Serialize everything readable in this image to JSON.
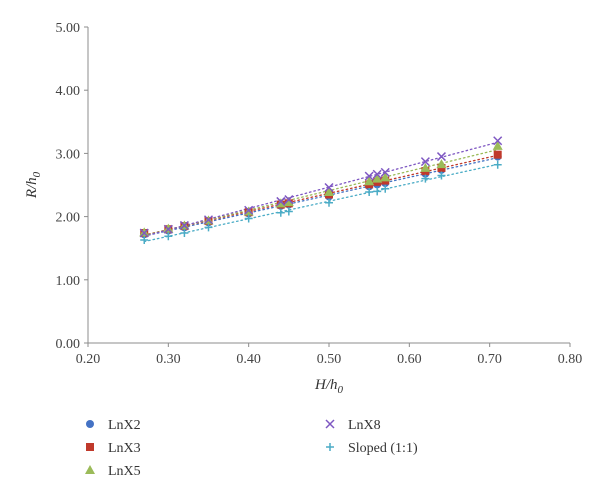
{
  "chart_data": {
    "type": "scatter",
    "title": "",
    "xlabel": {
      "main": "H/h",
      "sub": "0"
    },
    "ylabel": {
      "main": "R/h",
      "sub": "0"
    },
    "xlim": [
      0.2,
      0.8
    ],
    "ylim": [
      0.0,
      5.0
    ],
    "x_ticks": [
      "0.20",
      "0.30",
      "0.40",
      "0.50",
      "0.60",
      "0.70",
      "0.80"
    ],
    "y_ticks": [
      "0.00",
      "1.00",
      "2.00",
      "3.00",
      "4.00",
      "5.00"
    ],
    "grid": false,
    "legend_position": "bottom",
    "trendlines": "dotted linear fit per series",
    "series": [
      {
        "name": "LnX2",
        "marker": "circle",
        "color": "#4472C4",
        "x": [
          0.27,
          0.3,
          0.32,
          0.35,
          0.4,
          0.44,
          0.45,
          0.5,
          0.55,
          0.56,
          0.57,
          0.62,
          0.64,
          0.71
        ],
        "y": [
          1.72,
          1.78,
          1.83,
          1.91,
          2.05,
          2.17,
          2.19,
          2.32,
          2.48,
          2.51,
          2.53,
          2.68,
          2.74,
          2.95
        ]
      },
      {
        "name": "LnX3",
        "marker": "square",
        "color": "#C0392B",
        "x": [
          0.27,
          0.3,
          0.32,
          0.35,
          0.4,
          0.44,
          0.45,
          0.5,
          0.55,
          0.56,
          0.57,
          0.62,
          0.64,
          0.71
        ],
        "y": [
          1.74,
          1.8,
          1.85,
          1.93,
          2.07,
          2.19,
          2.21,
          2.35,
          2.51,
          2.55,
          2.57,
          2.72,
          2.77,
          2.98
        ]
      },
      {
        "name": "LnX5",
        "marker": "triangle",
        "color": "#9BBB59",
        "x": [
          0.27,
          0.3,
          0.32,
          0.35,
          0.4,
          0.44,
          0.45,
          0.5,
          0.55,
          0.56,
          0.57,
          0.62,
          0.64,
          0.71
        ],
        "y": [
          1.75,
          1.81,
          1.86,
          1.94,
          2.08,
          2.21,
          2.23,
          2.39,
          2.56,
          2.6,
          2.62,
          2.77,
          2.83,
          3.12
        ]
      },
      {
        "name": "LnX8",
        "marker": "x",
        "color": "#7E57C2",
        "x": [
          0.27,
          0.3,
          0.32,
          0.35,
          0.4,
          0.44,
          0.45,
          0.5,
          0.55,
          0.56,
          0.57,
          0.62,
          0.64,
          0.71
        ],
        "y": [
          1.74,
          1.8,
          1.86,
          1.95,
          2.1,
          2.24,
          2.27,
          2.46,
          2.64,
          2.67,
          2.7,
          2.87,
          2.95,
          3.2
        ]
      },
      {
        "name": "Sloped (1:1)",
        "marker": "plus",
        "color": "#4BACC6",
        "x": [
          0.27,
          0.3,
          0.32,
          0.35,
          0.4,
          0.44,
          0.45,
          0.5,
          0.55,
          0.56,
          0.57,
          0.62,
          0.64,
          0.71
        ],
        "y": [
          1.63,
          1.69,
          1.74,
          1.83,
          1.97,
          2.06,
          2.08,
          2.22,
          2.39,
          2.4,
          2.44,
          2.6,
          2.65,
          2.82
        ]
      }
    ]
  }
}
